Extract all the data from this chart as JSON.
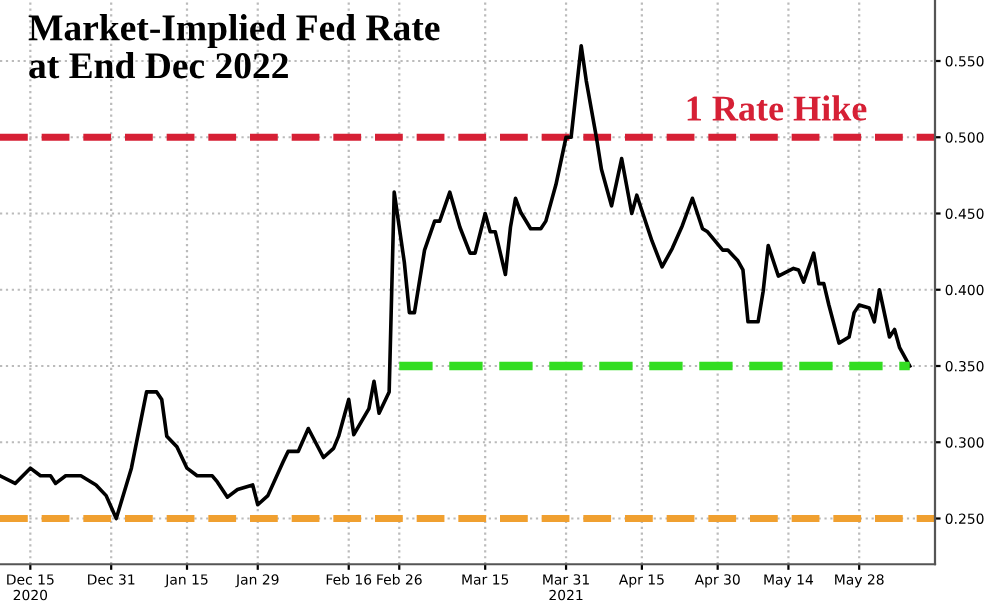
{
  "chart_data": {
    "type": "line",
    "title": "Market-Implied Fed Rate\nat End Dec 2022",
    "x": [
      "2020-12-09",
      "2020-12-12",
      "2020-12-15",
      "2020-12-17",
      "2020-12-19",
      "2020-12-20",
      "2020-12-22",
      "2020-12-25",
      "2020-12-28",
      "2020-12-30",
      "2021-01-01",
      "2021-01-04",
      "2021-01-07",
      "2021-01-09",
      "2021-01-10",
      "2021-01-11",
      "2021-01-13",
      "2021-01-15",
      "2021-01-17",
      "2021-01-20",
      "2021-01-21",
      "2021-01-23",
      "2021-01-25",
      "2021-01-26",
      "2021-01-28",
      "2021-01-29",
      "2021-01-31",
      "2021-02-03",
      "2021-02-04",
      "2021-02-06",
      "2021-02-08",
      "2021-02-11",
      "2021-02-13",
      "2021-02-14",
      "2021-02-16",
      "2021-02-17",
      "2021-02-20",
      "2021-02-21",
      "2021-02-22",
      "2021-02-24",
      "2021-02-25",
      "2021-02-27",
      "2021-02-28",
      "2021-03-01",
      "2021-03-03",
      "2021-03-05",
      "2021-03-06",
      "2021-03-08",
      "2021-03-10",
      "2021-03-12",
      "2021-03-13",
      "2021-03-15",
      "2021-03-16",
      "2021-03-17",
      "2021-03-19",
      "2021-03-20",
      "2021-03-21",
      "2021-03-22",
      "2021-03-24",
      "2021-03-26",
      "2021-03-27",
      "2021-03-29",
      "2021-03-31",
      "2021-04-01",
      "2021-04-03",
      "2021-04-04",
      "2021-04-06",
      "2021-04-07",
      "2021-04-09",
      "2021-04-11",
      "2021-04-13",
      "2021-04-14",
      "2021-04-17",
      "2021-04-19",
      "2021-04-21",
      "2021-04-23",
      "2021-04-25",
      "2021-04-27",
      "2021-04-28",
      "2021-05-01",
      "2021-05-02",
      "2021-05-04",
      "2021-05-05",
      "2021-05-06",
      "2021-05-08",
      "2021-05-09",
      "2021-05-10",
      "2021-05-12",
      "2021-05-15",
      "2021-05-16",
      "2021-05-17",
      "2021-05-19",
      "2021-05-20",
      "2021-05-21",
      "2021-05-22",
      "2021-05-24",
      "2021-05-26",
      "2021-05-27",
      "2021-05-28",
      "2021-05-30",
      "2021-05-31",
      "2021-06-01",
      "2021-06-03",
      "2021-06-04",
      "2021-06-05",
      "2021-06-07"
    ],
    "series": [
      {
        "color": "#000000",
        "values": [
          0.278,
          0.273,
          0.283,
          0.278,
          0.278,
          0.273,
          0.278,
          0.278,
          0.272,
          0.265,
          0.25,
          0.283,
          0.333,
          0.333,
          0.328,
          0.304,
          0.297,
          0.283,
          0.278,
          0.278,
          0.274,
          0.264,
          0.269,
          0.27,
          0.272,
          0.259,
          0.265,
          0.287,
          0.294,
          0.294,
          0.309,
          0.29,
          0.296,
          0.304,
          0.328,
          0.305,
          0.322,
          0.34,
          0.319,
          0.333,
          0.464,
          0.418,
          0.385,
          0.385,
          0.426,
          0.445,
          0.445,
          0.464,
          0.441,
          0.424,
          0.424,
          0.45,
          0.438,
          0.438,
          0.41,
          0.441,
          0.46,
          0.451,
          0.44,
          0.44,
          0.445,
          0.469,
          0.5,
          0.5,
          0.56,
          0.537,
          0.5,
          0.479,
          0.455,
          0.486,
          0.45,
          0.462,
          0.432,
          0.415,
          0.427,
          0.442,
          0.46,
          0.44,
          0.438,
          0.426,
          0.426,
          0.419,
          0.413,
          0.379,
          0.379,
          0.399,
          0.429,
          0.409,
          0.414,
          0.413,
          0.405,
          0.424,
          0.404,
          0.404,
          0.39,
          0.365,
          0.369,
          0.385,
          0.39,
          0.388,
          0.379,
          0.4,
          0.369,
          0.374,
          0.362,
          0.35
        ]
      },
      {
        "type": "line",
        "color": "#33dd22",
        "line_style": "dashed",
        "x": [
          "2021-02-26",
          "2021-06-07"
        ],
        "values": [
          0.35,
          0.35
        ]
      }
    ],
    "ref_lines": [
      {
        "axis": "y",
        "value": 0.5,
        "label": "1 Rate Hike",
        "color": "#d62035",
        "line_style": "dashed"
      },
      {
        "axis": "y",
        "value": 0.25,
        "color": "#f0a030",
        "line_style": "dashed"
      }
    ],
    "xlim": [
      "2020-12-09",
      "2021-06-12"
    ],
    "xticks": [
      {
        "value": "2020-12-15",
        "label": "Dec 15\n2020"
      },
      {
        "value": "2020-12-31",
        "label": "Dec 31"
      },
      {
        "value": "2021-01-15",
        "label": "Jan 15"
      },
      {
        "value": "2021-01-29",
        "label": "Jan 29"
      },
      {
        "value": "2021-02-16",
        "label": "Feb 16"
      },
      {
        "value": "2021-02-26",
        "label": "Feb 26"
      },
      {
        "value": "2021-03-15",
        "label": "Mar 15"
      },
      {
        "value": "2021-03-31",
        "label": "Mar 31\n2021"
      },
      {
        "value": "2021-04-15",
        "label": "Apr 15"
      },
      {
        "value": "2021-04-30",
        "label": "Apr 30"
      },
      {
        "value": "2021-05-14",
        "label": "May 14"
      },
      {
        "value": "2021-05-28",
        "label": "May 28"
      }
    ],
    "ylim": [
      0.22,
      0.59
    ],
    "yticks": [
      {
        "value": 0.25,
        "label": "0.250"
      },
      {
        "value": 0.3,
        "label": "0.300"
      },
      {
        "value": 0.35,
        "label": "0.350"
      },
      {
        "value": 0.4,
        "label": "0.400"
      },
      {
        "value": 0.45,
        "label": "0.450"
      },
      {
        "value": 0.5,
        "label": "0.500"
      },
      {
        "value": 0.55,
        "label": "0.550"
      }
    ],
    "grid": true
  }
}
